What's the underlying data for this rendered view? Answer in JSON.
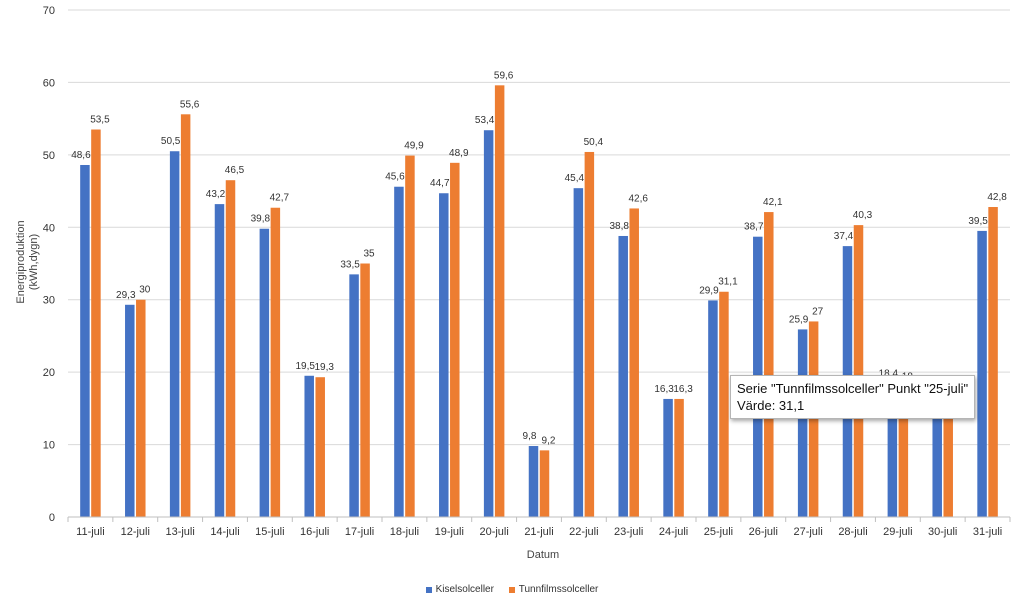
{
  "chart_data": {
    "type": "bar",
    "title": "",
    "xlabel": "Datum",
    "ylabel_lines": [
      "Energiproduktion",
      "(kWh,dygn)"
    ],
    "ylim": [
      0,
      70
    ],
    "yticks": [
      0,
      10,
      20,
      30,
      40,
      50,
      60,
      70
    ],
    "grid": true,
    "legend_position": "bottom",
    "categories": [
      "11-juli",
      "12-juli",
      "13-juli",
      "14-juli",
      "15-juli",
      "16-juli",
      "17-juli",
      "18-juli",
      "19-juli",
      "20-juli",
      "21-juli",
      "22-juli",
      "23-juli",
      "24-juli",
      "25-juli",
      "26-juli",
      "27-juli",
      "28-juli",
      "29-juli",
      "30-juli",
      "31-juli"
    ],
    "series": [
      {
        "name": "Kiselsolceller",
        "color": "#4472C4",
        "values": [
          48.6,
          29.3,
          50.5,
          43.2,
          39.8,
          19.5,
          33.5,
          45.6,
          44.7,
          53.4,
          9.8,
          45.4,
          38.8,
          16.3,
          29.9,
          38.7,
          25.9,
          37.4,
          18.4,
          16.0,
          39.5
        ],
        "labels": [
          "48,6",
          "29,3",
          "50,5",
          "43,2",
          "39,8",
          "19,5",
          "33,5",
          "45,6",
          "44,7",
          "53,4",
          "9,8",
          "45,4",
          "38,8",
          "16,3",
          "29,9",
          "38,7",
          "25,9",
          "37,4",
          "18,4",
          "",
          "39,5"
        ]
      },
      {
        "name": "Tunnfilmssolceller",
        "color": "#ED7D31",
        "values": [
          53.5,
          30,
          55.6,
          46.5,
          42.7,
          19.3,
          35,
          49.9,
          48.9,
          59.6,
          9.2,
          50.4,
          42.6,
          16.3,
          31.1,
          42.1,
          27,
          40.3,
          18.0,
          16.0,
          42.8
        ],
        "labels": [
          "53,5",
          "30",
          "55,6",
          "46,5",
          "42,7",
          "19,3",
          "35",
          "49,9",
          "48,9",
          "59,6",
          "9,2",
          "50,4",
          "42,6",
          "16,3",
          "31,1",
          "42,1",
          "27",
          "40,3",
          "18",
          "",
          "42,8"
        ]
      }
    ]
  },
  "tooltip": {
    "line1": "Serie \"Tunnfilmssolceller\" Punkt \"25-juli\"",
    "line2": "Värde: 31,1"
  }
}
